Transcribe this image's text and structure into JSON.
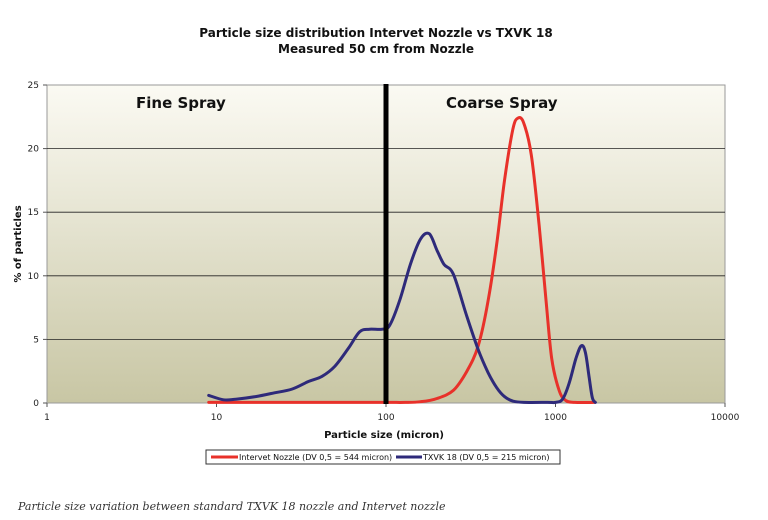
{
  "chart_data": {
    "type": "line",
    "title": "Particle size distribution Intervet Nozzle vs TXVK 18",
    "subtitle": "Measured 50 cm from Nozzle",
    "xlabel": "Particle size (micron)",
    "ylabel": "% of particles",
    "x_scale": "log",
    "xlim": [
      1,
      10000
    ],
    "ylim": [
      0,
      25
    ],
    "x_ticks": [
      1,
      10,
      100,
      1000,
      10000
    ],
    "x_tick_labels": [
      "1",
      "10",
      "100",
      "1000",
      "10000"
    ],
    "y_ticks": [
      0,
      5,
      10,
      15,
      20,
      25
    ],
    "y_tick_labels": [
      "0",
      "5",
      "10",
      "15",
      "20",
      "25"
    ],
    "grid": "horizontal",
    "legend_position": "bottom",
    "divider_x": 100,
    "annotations": [
      {
        "text": "Fine Spray"
      },
      {
        "text": "Coarse Spray"
      }
    ],
    "series": [
      {
        "name": "Intervet Nozzle (DV 0,5 = 544 micron)",
        "color": "#e8312a",
        "points": [
          [
            9,
            0.05
          ],
          [
            50,
            0.05
          ],
          [
            100,
            0.05
          ],
          [
            130,
            0.05
          ],
          [
            160,
            0.1
          ],
          [
            200,
            0.35
          ],
          [
            250,
            1.0
          ],
          [
            300,
            2.5
          ],
          [
            350,
            4.5
          ],
          [
            400,
            8.0
          ],
          [
            450,
            12.5
          ],
          [
            500,
            17.5
          ],
          [
            560,
            21.5
          ],
          [
            600,
            22.4
          ],
          [
            650,
            22.0
          ],
          [
            720,
            19.5
          ],
          [
            800,
            14.0
          ],
          [
            880,
            8.0
          ],
          [
            950,
            3.5
          ],
          [
            1050,
            1.0
          ],
          [
            1150,
            0.2
          ],
          [
            1300,
            0.05
          ],
          [
            1700,
            0.05
          ]
        ]
      },
      {
        "name": "TXVK 18 (DV 0,5 = 215 micron)",
        "color": "#2e2a7a",
        "points": [
          [
            9,
            0.6
          ],
          [
            11,
            0.25
          ],
          [
            13,
            0.3
          ],
          [
            17,
            0.5
          ],
          [
            22,
            0.8
          ],
          [
            28,
            1.1
          ],
          [
            35,
            1.7
          ],
          [
            42,
            2.1
          ],
          [
            50,
            2.9
          ],
          [
            60,
            4.3
          ],
          [
            70,
            5.6
          ],
          [
            80,
            5.8
          ],
          [
            95,
            5.8
          ],
          [
            105,
            6.1
          ],
          [
            120,
            8.0
          ],
          [
            140,
            11.0
          ],
          [
            160,
            12.9
          ],
          [
            180,
            13.3
          ],
          [
            200,
            12.0
          ],
          [
            220,
            10.9
          ],
          [
            250,
            10.1
          ],
          [
            300,
            6.8
          ],
          [
            350,
            4.2
          ],
          [
            400,
            2.4
          ],
          [
            450,
            1.2
          ],
          [
            500,
            0.5
          ],
          [
            560,
            0.15
          ],
          [
            650,
            0.05
          ],
          [
            900,
            0.05
          ],
          [
            1000,
            0.05
          ],
          [
            1100,
            0.3
          ],
          [
            1200,
            1.5
          ],
          [
            1320,
            3.5
          ],
          [
            1420,
            4.5
          ],
          [
            1500,
            4.0
          ],
          [
            1580,
            2.0
          ],
          [
            1650,
            0.4
          ],
          [
            1720,
            0.05
          ]
        ]
      }
    ]
  },
  "caption": "Particle size variation between standard TXVK 18 nozzle and Intervet nozzle"
}
